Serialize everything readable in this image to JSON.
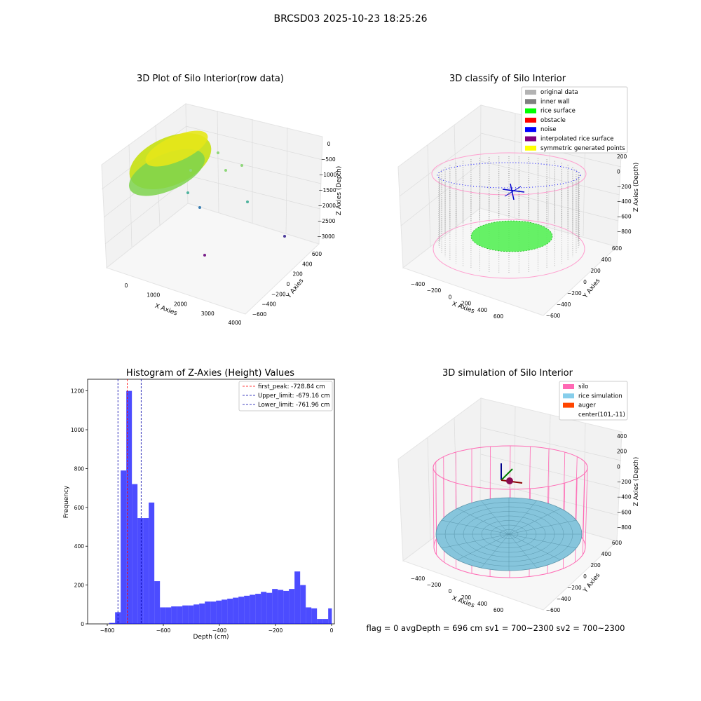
{
  "figure": {
    "suptitle": "BRCSD03 2025-10-23 18:25:26",
    "status_line": "flag = 0     avgDepth = 696 cm  sv1 = 700~2300  sv2 = 700~2300"
  },
  "panels": {
    "raw": {
      "title": "3D Plot of Silo Interior(row data)",
      "xlabel": "X Axies",
      "ylabel": "Y Axies",
      "zlabel": "Z Axies (Depth)",
      "xticks": [
        "0",
        "1000",
        "2000",
        "3000",
        "4000"
      ],
      "yticks": [
        "600",
        "400",
        "200",
        "0",
        "−200",
        "−400",
        "−600"
      ],
      "zticks": [
        "0",
        "−500",
        "−1000",
        "−1500",
        "−2000",
        "−2500",
        "−3000"
      ]
    },
    "classify": {
      "title": "3D classify of Silo Interior",
      "xlabel": "X Axies",
      "ylabel": "Y Axies",
      "zlabel": "Z Axies (Depth)",
      "xticks": [
        "−400",
        "−200",
        "0",
        "200",
        "400",
        "600"
      ],
      "yticks": [
        "600",
        "400",
        "200",
        "0",
        "−200",
        "−400",
        "−600"
      ],
      "zticks": [
        "200",
        "0",
        "−200",
        "−400",
        "−600",
        "−800"
      ],
      "zticks_top": "400",
      "legend": [
        {
          "label": "original data",
          "color": "#b3b3b3"
        },
        {
          "label": "inner wall",
          "color": "#808080"
        },
        {
          "label": "rice surface",
          "color": "#00ff00"
        },
        {
          "label": "obstacle",
          "color": "#ff0000"
        },
        {
          "label": "noise",
          "color": "#0000ff"
        },
        {
          "label": "interpolated rice surface",
          "color": "#800080"
        },
        {
          "label": "symmetric generated points",
          "color": "#ffff00"
        }
      ]
    },
    "simulation": {
      "title": "3D simulation of Silo Interior",
      "xlabel": "X Axies",
      "ylabel": "Y Axies",
      "zlabel": "Z Axies (Depth)",
      "xticks": [
        "−400",
        "−200",
        "0",
        "200",
        "400",
        "600"
      ],
      "yticks": [
        "600",
        "400",
        "200",
        "0",
        "−200",
        "−400",
        "−600"
      ],
      "zticks": [
        "400",
        "200",
        "0",
        "−200",
        "−400",
        "−600",
        "−800"
      ],
      "legend": [
        {
          "label": "silo",
          "color": "#ff69b4"
        },
        {
          "label": "rice simulation",
          "color": "#87ceeb"
        },
        {
          "label": "auger",
          "color": "#ff4500"
        },
        {
          "label": "center(101,-11)",
          "color": ""
        }
      ]
    }
  },
  "chart_data": {
    "type": "bar",
    "title": "Histogram of Z-Axies (Height) Values",
    "xlabel": "Depth (cm)",
    "ylabel": "Frequency",
    "xlim": [
      -870,
      10
    ],
    "ylim": [
      0,
      1260
    ],
    "xticks": [
      -800,
      -600,
      -400,
      -200,
      0
    ],
    "xtick_labels": [
      "−800",
      "−600",
      "−400",
      "−200",
      "0"
    ],
    "yticks": [
      0,
      200,
      400,
      600,
      800,
      1000,
      1200
    ],
    "bar_color": "#0000ff",
    "bin_edges": [
      -792.9,
      -772.1,
      -752.1,
      -732.1,
      -712.1,
      -692.1,
      -672.1,
      -652.1,
      -632.1,
      -612.1,
      -592.1,
      -572.1,
      -552.1,
      -532.1,
      -512.1,
      -492.1,
      -472.1,
      -452.1,
      -432.1,
      -412.1,
      -392.1,
      -372.1,
      -352.1,
      -332.1,
      -312.1,
      -292.1,
      -272.1,
      -252.1,
      -232.1,
      -212.1,
      -192.1,
      -172.1,
      -152.1,
      -132.1,
      -112.1,
      -92.1,
      -72.1,
      -52.1,
      -32.1,
      -12.1,
      1.0
    ],
    "values": [
      5,
      60,
      790,
      1200,
      720,
      545,
      545,
      625,
      220,
      85,
      85,
      90,
      90,
      95,
      95,
      100,
      105,
      115,
      115,
      120,
      125,
      130,
      135,
      140,
      145,
      150,
      155,
      165,
      160,
      180,
      175,
      170,
      180,
      270,
      200,
      85,
      80,
      25,
      25,
      80
    ],
    "reference_lines": [
      {
        "name": "first_peak: -728.84 cm",
        "x": -728.84,
        "color": "#ff0000"
      },
      {
        "name": "Upper_limit: -679.16 cm",
        "x": -679.16,
        "color": "#0000aa"
      },
      {
        "name": "Lower_limit: -761.96 cm",
        "x": -761.96,
        "color": "#0000aa"
      }
    ]
  }
}
